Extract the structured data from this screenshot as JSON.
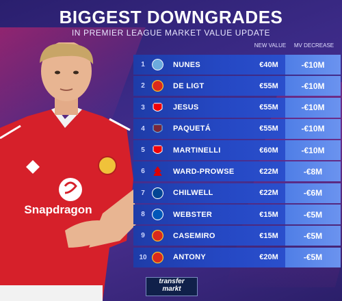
{
  "header": {
    "title": "BIGGEST DOWNGRADES",
    "subtitle": "IN PREMIER LEAGUE MARKET VALUE UPDATE"
  },
  "columns": {
    "new_value": "NEW VALUE",
    "mv_decrease": "MV DECREASE"
  },
  "player_shirt_sponsor": "Snapdragon",
  "rows": [
    {
      "rank": "1",
      "name": "NUNES",
      "club_icon": "man-city-crest-icon",
      "crest_color": "#6cabdd",
      "value": "€40M",
      "decrease": "-€10M"
    },
    {
      "rank": "2",
      "name": "DE LIGT",
      "club_icon": "man-utd-crest-icon",
      "crest_color": "#da291c",
      "value": "€55M",
      "decrease": "-€10M"
    },
    {
      "rank": "3",
      "name": "JESUS",
      "club_icon": "arsenal-crest-icon",
      "crest_color": "#ef0107",
      "value": "€55M",
      "decrease": "-€10M"
    },
    {
      "rank": "4",
      "name": "PAQUETÁ",
      "club_icon": "west-ham-crest-icon",
      "crest_color": "#7a263a",
      "value": "€55M",
      "decrease": "-€10M"
    },
    {
      "rank": "5",
      "name": "MARTINELLI",
      "club_icon": "arsenal-crest-icon",
      "crest_color": "#ef0107",
      "value": "€60M",
      "decrease": "-€10M"
    },
    {
      "rank": "6",
      "name": "WARD-PROWSE",
      "club_icon": "nottingham-forest-crest-icon",
      "crest_color": "#dd0000",
      "value": "€22M",
      "decrease": "-€8M"
    },
    {
      "rank": "7",
      "name": "CHILWELL",
      "club_icon": "chelsea-crest-icon",
      "crest_color": "#034694",
      "value": "€22M",
      "decrease": "-€6M"
    },
    {
      "rank": "8",
      "name": "WEBSTER",
      "club_icon": "brighton-crest-icon",
      "crest_color": "#0057b8",
      "value": "€15M",
      "decrease": "-€5M"
    },
    {
      "rank": "9",
      "name": "CASEMIRO",
      "club_icon": "man-utd-crest-icon",
      "crest_color": "#da291c",
      "value": "€15M",
      "decrease": "-€5M"
    },
    {
      "rank": "10",
      "name": "ANTONY",
      "club_icon": "man-utd-crest-icon",
      "crest_color": "#da291c",
      "value": "€20M",
      "decrease": "-€5M"
    }
  ],
  "logo": {
    "line1": "transfer",
    "line2": "markt"
  }
}
